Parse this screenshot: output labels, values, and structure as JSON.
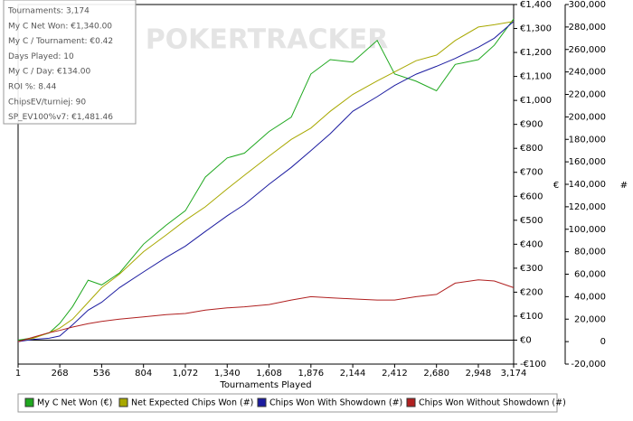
{
  "chart_data": {
    "type": "line",
    "watermark": "POKERTRACKER",
    "stats": [
      "Tournaments: 3,174",
      "My C Net Won: €1,340.00",
      "My C / Tournament: €0.42",
      "Days Played: 10",
      "My C / Day: €134.00",
      "ROI %: 8.44",
      "ChipsEV/turniej: 90",
      "SP_EV100%v7: €1,481.46"
    ],
    "x_label": "Tournaments Played",
    "y_label": "€",
    "y2_label": "#",
    "x": [
      1,
      100,
      200,
      268,
      350,
      450,
      536,
      650,
      804,
      950,
      1072,
      1200,
      1340,
      1450,
      1608,
      1750,
      1876,
      2000,
      2144,
      2300,
      2412,
      2550,
      2680,
      2800,
      2948,
      3050,
      3174
    ],
    "xlim": [
      1,
      3174
    ],
    "xticks": [
      1,
      268,
      536,
      804,
      {
        "value": 1072,
        "label": "1,072"
      },
      {
        "value": 1340,
        "label": "1,340"
      },
      {
        "value": 1608,
        "label": "1,608"
      },
      {
        "value": 1876,
        "label": "1,876"
      },
      {
        "value": 2144,
        "label": "2,144"
      },
      {
        "value": 2412,
        "label": "2,412"
      },
      {
        "value": 2680,
        "label": "2,680"
      },
      {
        "value": 2948,
        "label": "2,948"
      },
      {
        "value": 3174,
        "label": "3,174"
      }
    ],
    "ylim": [
      -100,
      1400
    ],
    "yticks": [
      {
        "value": -100,
        "label": "-€100"
      },
      {
        "value": 0,
        "label": "€0"
      },
      {
        "value": 100,
        "label": "€100"
      },
      {
        "value": 200,
        "label": "€200"
      },
      {
        "value": 300,
        "label": "€300"
      },
      {
        "value": 400,
        "label": "€400"
      },
      {
        "value": 500,
        "label": "€500"
      },
      {
        "value": 600,
        "label": "€600"
      },
      {
        "value": 700,
        "label": "€700"
      },
      {
        "value": 800,
        "label": "€800"
      },
      {
        "value": 900,
        "label": "€900"
      },
      {
        "value": 1000,
        "label": "€1,000"
      },
      {
        "value": 1100,
        "label": "€1,100"
      },
      {
        "value": 1200,
        "label": "€1,200"
      },
      {
        "value": 1300,
        "label": "€1,300"
      },
      {
        "value": 1400,
        "label": "€1,400"
      }
    ],
    "y2lim": [
      -20000,
      300000
    ],
    "y2ticks": [
      {
        "value": -20000,
        "label": "-20,000"
      },
      0,
      {
        "value": 20000,
        "label": "20,000"
      },
      {
        "value": 40000,
        "label": "40,000"
      },
      {
        "value": 60000,
        "label": "60,000"
      },
      {
        "value": 80000,
        "label": "80,000"
      },
      {
        "value": 100000,
        "label": "100,000"
      },
      {
        "value": 120000,
        "label": "120,000"
      },
      {
        "value": 140000,
        "label": "140,000"
      },
      {
        "value": 160000,
        "label": "160,000"
      },
      {
        "value": 180000,
        "label": "180,000"
      },
      {
        "value": 200000,
        "label": "200,000"
      },
      {
        "value": 220000,
        "label": "220,000"
      },
      {
        "value": 240000,
        "label": "240,000"
      },
      {
        "value": 260000,
        "label": "260,000"
      },
      {
        "value": 280000,
        "label": "280,000"
      },
      {
        "value": 300000,
        "label": "300,000"
      }
    ],
    "series": [
      {
        "name": "My C Net Won (€)",
        "color": "#1fa81f",
        "values": [
          0,
          10,
          30,
          70,
          140,
          250,
          230,
          280,
          400,
          480,
          540,
          680,
          760,
          780,
          870,
          930,
          1110,
          1170,
          1160,
          1250,
          1110,
          1080,
          1040,
          1150,
          1170,
          1230,
          1340
        ]
      },
      {
        "name": "Net Expected Chips Won (#)",
        "color": "#a8a800",
        "axis": "y2",
        "values": [
          0,
          3000,
          8000,
          12000,
          20000,
          35000,
          48000,
          60000,
          80000,
          95000,
          108000,
          120000,
          136000,
          148000,
          165000,
          180000,
          190000,
          205000,
          220000,
          232000,
          240000,
          250000,
          255000,
          268000,
          280000,
          282000,
          285000
        ]
      },
      {
        "name": "Chips Won With Showdown (#)",
        "color": "#1c1ca0",
        "axis": "y2",
        "values": [
          0,
          2000,
          3000,
          5000,
          15000,
          28000,
          35000,
          48000,
          62000,
          75000,
          85000,
          98000,
          112000,
          122000,
          140000,
          155000,
          170000,
          185000,
          205000,
          218000,
          228000,
          238000,
          245000,
          252000,
          262000,
          270000,
          285000
        ]
      },
      {
        "name": "Chips Won Without Showdown (#)",
        "color": "#b02020",
        "axis": "y2",
        "values": [
          0,
          4000,
          8000,
          10000,
          13000,
          16000,
          18000,
          20000,
          22000,
          24000,
          25000,
          28000,
          30000,
          31000,
          33000,
          37000,
          40000,
          39000,
          38000,
          37000,
          37000,
          40000,
          42000,
          52000,
          55000,
          54000,
          48000
        ]
      }
    ]
  }
}
